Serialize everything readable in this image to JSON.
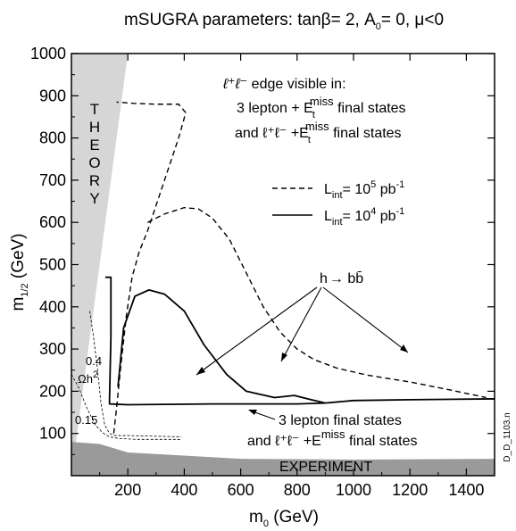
{
  "chart_data": {
    "type": "line",
    "title_parts": {
      "base": "mSUGRA parameters: tanβ= 2, A",
      "sub": "0",
      "rest": "= 0, μ<0"
    },
    "xlabel_parts": {
      "base": "m",
      "sub": "0",
      "rest": " (GeV)"
    },
    "ylabel_parts": {
      "base": "m",
      "sub": "1/2",
      "rest": " (GeV)"
    },
    "xlim": [
      0,
      1500
    ],
    "ylim": [
      0,
      1000
    ],
    "x_ticks": [
      200,
      400,
      600,
      800,
      1000,
      1200,
      1400
    ],
    "y_ticks": [
      100,
      200,
      300,
      400,
      500,
      600,
      700,
      800,
      900,
      1000
    ],
    "grid": false,
    "legend_position": "center-right",
    "legend": [
      {
        "label": "L",
        "sub": "int",
        "rest": "= 10",
        "sup": "5",
        "unit": " pb",
        "unit_sup": "-1",
        "style": "dashed"
      },
      {
        "label": "L",
        "sub": "int",
        "rest": "= 10",
        "sup": "4",
        "unit": " pb",
        "unit_sup": "-1",
        "style": "solid"
      }
    ],
    "series": [
      {
        "style": "dashed",
        "x": [
          150,
          160,
          175,
          195,
          215,
          240,
          270,
          300,
          330,
          360,
          380,
          395,
          405,
          380,
          300,
          220,
          160
        ],
        "y": [
          100,
          160,
          260,
          380,
          470,
          530,
          580,
          640,
          700,
          760,
          800,
          835,
          860,
          880,
          880,
          882,
          885
        ]
      },
      {
        "style": "dashed",
        "x": [
          270,
          330,
          400,
          450,
          500,
          560,
          620,
          680,
          740,
          800,
          860,
          940,
          1050,
          1200,
          1350,
          1470
        ],
        "y": [
          600,
          620,
          635,
          632,
          610,
          560,
          480,
          400,
          340,
          300,
          275,
          255,
          238,
          222,
          202,
          185
        ]
      },
      {
        "style": "solid",
        "x": [
          120,
          140,
          140,
          135,
          135,
          200,
          500,
          800,
          900,
          1000,
          1200,
          1500
        ],
        "y": [
          470,
          470,
          330,
          180,
          170,
          168,
          170,
          170,
          172,
          178,
          180,
          182
        ]
      },
      {
        "style": "solid",
        "x": [
          165,
          185,
          225,
          275,
          330,
          400,
          470,
          550,
          620,
          720,
          790,
          850,
          900
        ],
        "y": [
          210,
          350,
          425,
          440,
          430,
          390,
          310,
          240,
          200,
          185,
          190,
          180,
          172
        ]
      }
    ],
    "omega_contours": [
      {
        "label": "0.4",
        "x": [
          65,
          78,
          92,
          105,
          118,
          135,
          155,
          200,
          260,
          330,
          390
        ],
        "y": [
          390,
          330,
          255,
          170,
          120,
          100,
          95,
          95,
          94,
          93,
          92
        ]
      },
      {
        "label": "0.15",
        "x": [
          0,
          25,
          55,
          85,
          110,
          135,
          170,
          230,
          300,
          370,
          390
        ],
        "y": [
          240,
          210,
          160,
          120,
          102,
          92,
          88,
          86,
          86,
          86,
          85
        ]
      }
    ],
    "regions": [
      {
        "label": "THEORY",
        "letters": [
          "T",
          "H",
          "E",
          "O",
          "R",
          "Y"
        ],
        "polygon_x": [
          0,
          200,
          0
        ],
        "polygon_y": [
          1000,
          1000,
          0
        ]
      },
      {
        "label": "EXPERIMENT",
        "polygon_x": [
          0,
          100,
          200,
          600,
          1000,
          1500,
          1500,
          0
        ],
        "polygon_y": [
          80,
          75,
          55,
          40,
          38,
          40,
          0,
          0
        ]
      }
    ],
    "annotations": {
      "edge_header": {
        "lead": "ℓ⁺ℓ⁻",
        "text": " edge visible in:"
      },
      "edge_line1": {
        "text": "3 lepton + E",
        "sub": "t",
        "sup": "miss",
        "rest": " final states"
      },
      "edge_line2": {
        "text": "and ℓ⁺ℓ⁻ +E",
        "sub": "t",
        "sup": "miss",
        "rest": " final states"
      },
      "hbb": {
        "text": "h",
        "arrow": "→",
        "rest": " bb̄"
      },
      "three_lepton": "3 lepton  final states",
      "three_lepton2": {
        "text": "and ℓ⁺ℓ⁻ +E",
        "sup": "miss",
        "rest": " final states"
      },
      "omega_04": "0.4",
      "omega_label": {
        "text": "Ωh",
        "sup": "2"
      },
      "omega_015": "0.15",
      "side_id": "D_D_1103.n"
    }
  }
}
